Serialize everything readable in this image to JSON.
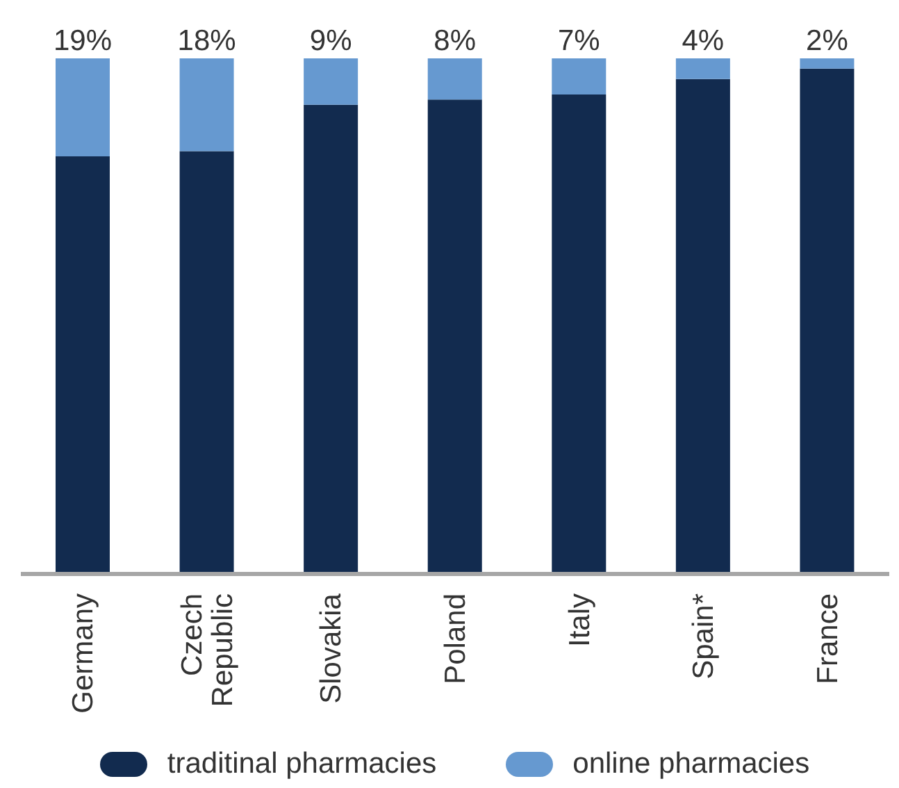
{
  "chart_data": {
    "type": "bar",
    "stacked": true,
    "ylim": [
      0,
      100
    ],
    "categories": [
      "Germany",
      "Czech Republic",
      "Slovakia",
      "Poland",
      "Italy",
      "Spain*",
      "France"
    ],
    "series": [
      {
        "name": "traditinal pharmacies",
        "color": "#122b4f",
        "values": [
          81,
          82,
          91,
          92,
          93,
          96,
          98
        ]
      },
      {
        "name": "online pharmacies",
        "color": "#6699d0",
        "values": [
          19,
          18,
          9,
          8,
          7,
          4,
          2
        ],
        "value_labels": [
          "19%",
          "18%",
          "9%",
          "8%",
          "7%",
          "4%",
          "2%"
        ]
      }
    ],
    "legend": "bottom",
    "grid": false
  }
}
